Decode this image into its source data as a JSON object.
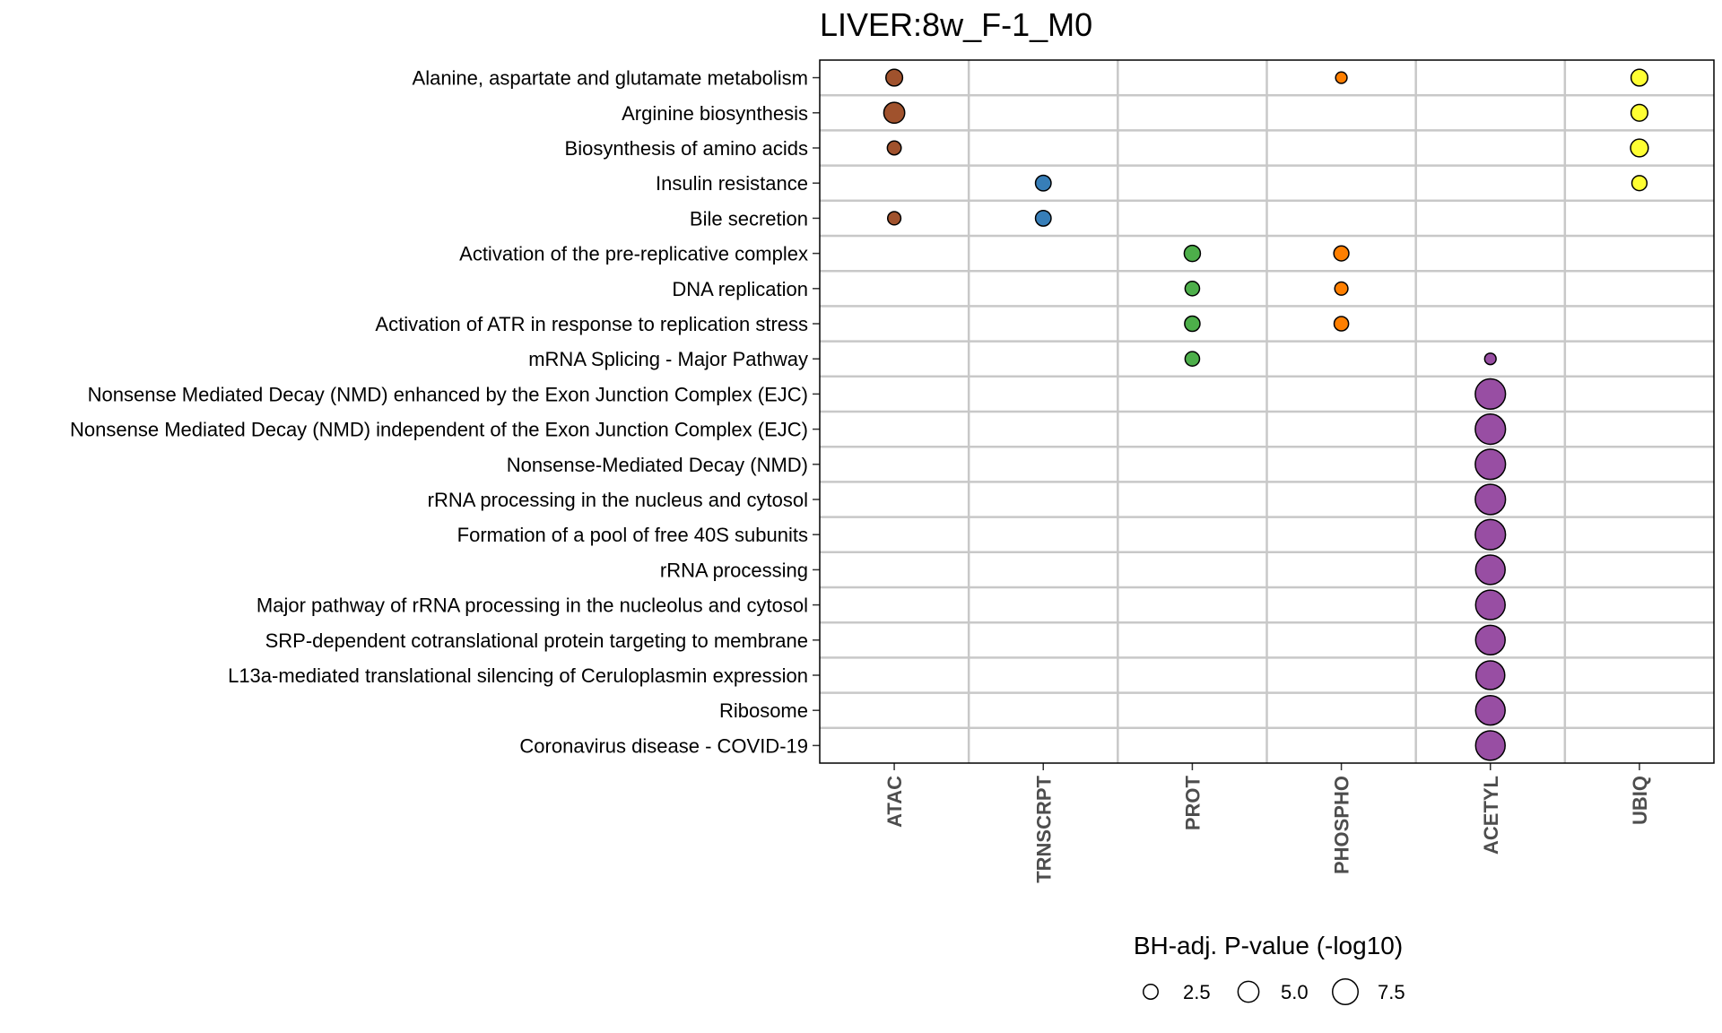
{
  "chart_data": {
    "type": "scatter",
    "title": "LIVER:8w_F-1_M0",
    "x_categories": [
      "ATAC",
      "TRNSCRPT",
      "PROT",
      "PHOSPHO",
      "ACETYL",
      "UBIQ"
    ],
    "y_categories": [
      "Alanine, aspartate and glutamate metabolism",
      "Arginine biosynthesis",
      "Biosynthesis of amino acids",
      "Insulin resistance",
      "Bile secretion",
      "Activation of the pre-replicative complex",
      "DNA replication",
      "Activation of ATR in response to replication stress",
      "mRNA Splicing - Major Pathway",
      "Nonsense Mediated Decay (NMD) enhanced by the Exon Junction Complex (EJC)",
      "Nonsense Mediated Decay (NMD) independent of the Exon Junction Complex (EJC)",
      "Nonsense-Mediated Decay (NMD)",
      "rRNA processing in the nucleus and cytosol",
      "Formation of a pool of free 40S subunits",
      "rRNA processing",
      "Major pathway of rRNA processing in the nucleolus and cytosol",
      "SRP-dependent cotranslational protein targeting to membrane",
      "L13a-mediated translational silencing of Ceruloplasmin expression",
      "Ribosome",
      "Coronavirus disease - COVID-19"
    ],
    "colors": {
      "ATAC": "#a0522d",
      "TRNSCRPT": "#377eb8",
      "PROT": "#4daf4a",
      "PHOSPHO": "#ff7f00",
      "ACETYL": "#984ea3",
      "UBIQ": "#ffff33"
    },
    "points": [
      {
        "x": "ATAC",
        "y": "Alanine, aspartate and glutamate metabolism",
        "value": 3.2
      },
      {
        "x": "PHOSPHO",
        "y": "Alanine, aspartate and glutamate metabolism",
        "value": 1.5
      },
      {
        "x": "UBIQ",
        "y": "Alanine, aspartate and glutamate metabolism",
        "value": 3.2
      },
      {
        "x": "ATAC",
        "y": "Arginine biosynthesis",
        "value": 5.0
      },
      {
        "x": "UBIQ",
        "y": "Arginine biosynthesis",
        "value": 3.2
      },
      {
        "x": "ATAC",
        "y": "Biosynthesis of amino acids",
        "value": 2.2
      },
      {
        "x": "UBIQ",
        "y": "Biosynthesis of amino acids",
        "value": 3.6
      },
      {
        "x": "TRNSCRPT",
        "y": "Insulin resistance",
        "value": 2.8
      },
      {
        "x": "UBIQ",
        "y": "Insulin resistance",
        "value": 2.6
      },
      {
        "x": "ATAC",
        "y": "Bile secretion",
        "value": 2.0
      },
      {
        "x": "TRNSCRPT",
        "y": "Bile secretion",
        "value": 2.8
      },
      {
        "x": "PROT",
        "y": "Activation of the pre-replicative complex",
        "value": 3.0
      },
      {
        "x": "PHOSPHO",
        "y": "Activation of the pre-replicative complex",
        "value": 2.6
      },
      {
        "x": "PROT",
        "y": "DNA replication",
        "value": 2.4
      },
      {
        "x": "PHOSPHO",
        "y": "DNA replication",
        "value": 2.0
      },
      {
        "x": "PROT",
        "y": "Activation of ATR in response to replication stress",
        "value": 2.7
      },
      {
        "x": "PHOSPHO",
        "y": "Activation of ATR in response to replication stress",
        "value": 2.4
      },
      {
        "x": "PROT",
        "y": "mRNA Splicing - Major Pathway",
        "value": 2.4
      },
      {
        "x": "ACETYL",
        "y": "mRNA Splicing - Major Pathway",
        "value": 1.5
      },
      {
        "x": "ACETYL",
        "y": "Nonsense Mediated Decay (NMD) enhanced by the Exon Junction Complex (EJC)",
        "value": 10.5
      },
      {
        "x": "ACETYL",
        "y": "Nonsense Mediated Decay (NMD) independent of the Exon Junction Complex (EJC)",
        "value": 10.5
      },
      {
        "x": "ACETYL",
        "y": "Nonsense-Mediated Decay (NMD)",
        "value": 10.5
      },
      {
        "x": "ACETYL",
        "y": "rRNA processing in the nucleus and cytosol",
        "value": 10.5
      },
      {
        "x": "ACETYL",
        "y": "Formation of a pool of free 40S subunits",
        "value": 10.5
      },
      {
        "x": "ACETYL",
        "y": "rRNA processing",
        "value": 10.0
      },
      {
        "x": "ACETYL",
        "y": "Major pathway of rRNA processing in the nucleolus and cytosol",
        "value": 10.0
      },
      {
        "x": "ACETYL",
        "y": "SRP-dependent cotranslational protein targeting to membrane",
        "value": 10.0
      },
      {
        "x": "ACETYL",
        "y": "L13a-mediated translational silencing of Ceruloplasmin expression",
        "value": 9.5
      },
      {
        "x": "ACETYL",
        "y": "Ribosome",
        "value": 10.0
      },
      {
        "x": "ACETYL",
        "y": "Coronavirus disease - COVID-19",
        "value": 10.0
      }
    ],
    "legend": {
      "title": "BH-adj. P-value (-log10)",
      "breaks": [
        2.5,
        5.0,
        7.5
      ],
      "labels": [
        "2.5",
        "5.0",
        "7.5"
      ],
      "position": "bottom"
    },
    "grid": true
  }
}
